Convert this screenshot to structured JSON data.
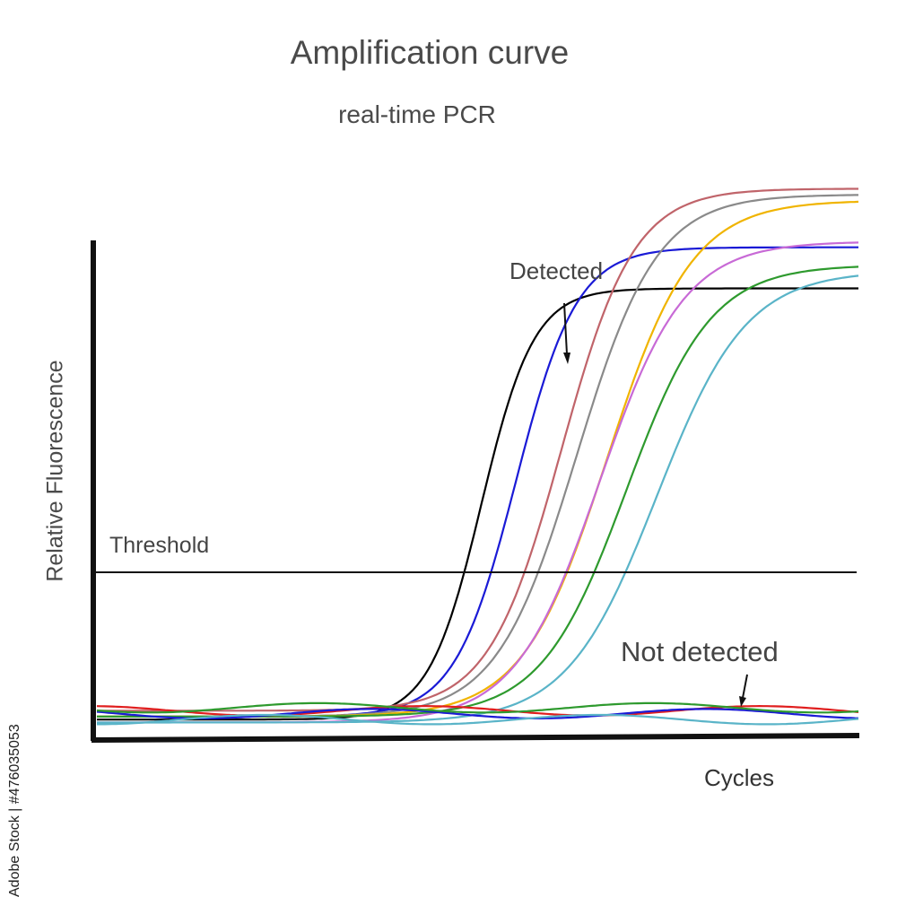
{
  "title": "Amplification curve",
  "subtitle": "real-time PCR",
  "watermark": "Adobe Stock | #476035053",
  "chart_data": {
    "type": "line",
    "xlabel": "Cycles",
    "ylabel": "Relative Fluorescence",
    "threshold": {
      "label": "Threshold",
      "value": 0.34
    },
    "annotations": [
      {
        "text": "Detected",
        "points_to": "sigmoid curves"
      },
      {
        "text": "Not detected",
        "points_to": "flat baseline curves"
      }
    ],
    "xlim": [
      0,
      100
    ],
    "ylim": [
      0,
      1
    ],
    "grid": false,
    "series": [
      {
        "color": "#000000",
        "status": "detected",
        "midpoint": 50.5,
        "plateau": 0.75,
        "baseline": 0.015,
        "steepness": 0.29
      },
      {
        "color": "#1a1ad6",
        "status": "detected",
        "midpoint": 55,
        "plateau": 0.82,
        "baseline": 0.02,
        "steepness": 0.25
      },
      {
        "color": "#c0646a",
        "status": "detected",
        "midpoint": 61,
        "plateau": 0.92,
        "baseline": 0.03,
        "steepness": 0.21
      },
      {
        "color": "#8a8a8a",
        "status": "detected",
        "midpoint": 63,
        "plateau": 0.91,
        "baseline": 0.02,
        "steepness": 0.19
      },
      {
        "color": "#f0b400",
        "status": "detected",
        "midpoint": 67,
        "plateau": 0.9,
        "baseline": 0.02,
        "steepness": 0.18
      },
      {
        "color": "#c86ad6",
        "status": "detected",
        "midpoint": 66,
        "plateau": 0.83,
        "baseline": 0.01,
        "steepness": 0.18
      },
      {
        "color": "#2e9a2e",
        "status": "detected",
        "midpoint": 69.5,
        "plateau": 0.79,
        "baseline": 0.02,
        "steepness": 0.18
      },
      {
        "color": "#5ab4c8",
        "status": "detected",
        "midpoint": 73.5,
        "plateau": 0.78,
        "baseline": 0.01,
        "steepness": 0.17
      },
      {
        "color": "#e01e1e",
        "status": "not detected",
        "level": 0.03
      },
      {
        "color": "#1a1ad6",
        "status": "not detected",
        "level": 0.025
      },
      {
        "color": "#2e9a2e",
        "status": "not detected",
        "level": 0.035
      },
      {
        "color": "#5ab4c8",
        "status": "not detected",
        "level": 0.015
      }
    ]
  }
}
